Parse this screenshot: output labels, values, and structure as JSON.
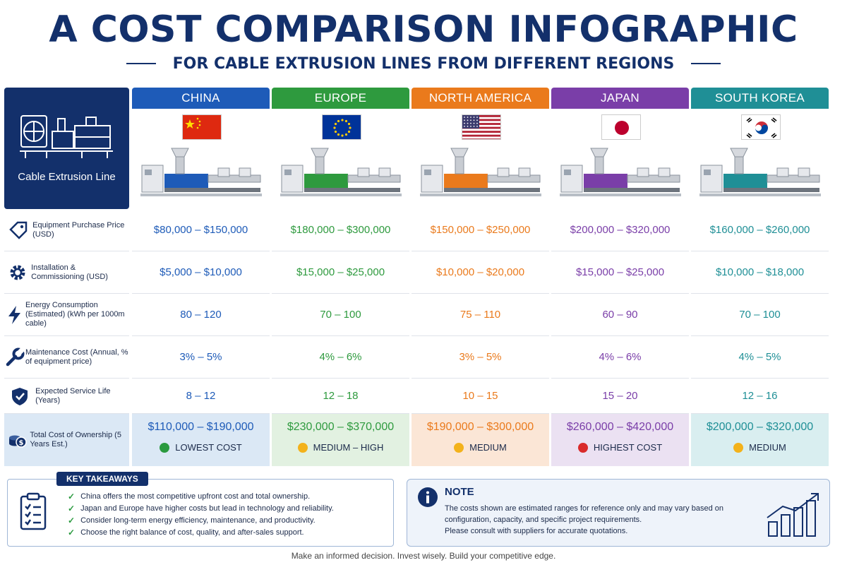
{
  "title": "A COST COMPARISON INFOGRAPHIC",
  "subtitle": "FOR CABLE EXTRUSION LINES FROM DIFFERENT REGIONS",
  "header_label": "Cable Extrusion Line",
  "row_labels": [
    {
      "text": "Equipment Purchase Price (USD)",
      "icon": "price-tag-icon"
    },
    {
      "text": "Installation & Commissioning (USD)",
      "icon": "gear-icon"
    },
    {
      "text": "Energy Consumption (Estimated) (kWh per 1000m cable)",
      "icon": "lightning-icon"
    },
    {
      "text": "Maintenance Cost (Annual, % of equipment price)",
      "icon": "wrench-icon"
    },
    {
      "text": "Expected Service Life (Years)",
      "icon": "shield-check-icon"
    },
    {
      "text": "Total Cost of Ownership (5 Years Est.)",
      "icon": "coins-icon"
    }
  ],
  "regions": [
    {
      "name": "CHINA",
      "color": "#1e5bb8",
      "tint": "#dbe8f5",
      "flag": "china",
      "values": [
        "$80,000 – $150,000",
        "$5,000 – $10,000",
        "80 – 120",
        "3% – 5%",
        "8 – 12"
      ],
      "tco": "$110,000 – $190,000",
      "rating": "LOWEST COST",
      "rating_color": "#2a9a3f"
    },
    {
      "name": "EUROPE",
      "color": "#2e9a3e",
      "tint": "#e2f1e1",
      "flag": "eu",
      "values": [
        "$180,000 – $300,000",
        "$15,000 – $25,000",
        "70 – 100",
        "4% – 6%",
        "12 – 18"
      ],
      "tco": "$230,000 – $370,000",
      "rating": "MEDIUM – HIGH",
      "rating_color": "#f3b21b"
    },
    {
      "name": "NORTH AMERICA",
      "color": "#ea7a1c",
      "tint": "#fbe6d6",
      "flag": "usa",
      "values": [
        "$150,000 – $250,000",
        "$10,000 – $20,000",
        "75 – 110",
        "3% – 5%",
        "10 – 15"
      ],
      "tco": "$190,000 – $300,000",
      "rating": "MEDIUM",
      "rating_color": "#f3b21b"
    },
    {
      "name": "JAPAN",
      "color": "#7a3ea8",
      "tint": "#ebe1f2",
      "flag": "japan",
      "values": [
        "$200,000 – $320,000",
        "$15,000 – $25,000",
        "60 – 90",
        "4% – 6%",
        "15 – 20"
      ],
      "tco": "$260,000 – $420,000",
      "rating": "HIGHEST COST",
      "rating_color": "#d92b2b"
    },
    {
      "name": "SOUTH KOREA",
      "color": "#1f8f96",
      "tint": "#d9eef0",
      "flag": "korea",
      "values": [
        "$160,000 – $260,000",
        "$10,000 – $18,000",
        "70 – 100",
        "4% – 5%",
        "12 – 16"
      ],
      "tco": "$200,000 – $320,000",
      "rating": "MEDIUM",
      "rating_color": "#f3b21b"
    }
  ],
  "key_takeaways": {
    "label": "KEY TAKEAWAYS",
    "items": [
      "China offers the most competitive upfront cost and total ownership.",
      "Japan and Europe have higher costs but lead in technology and reliability.",
      "Consider long-term energy efficiency, maintenance, and productivity.",
      "Choose the right balance of cost, quality, and after-sales support."
    ]
  },
  "note": {
    "title": "NOTE",
    "lines": [
      "The costs shown are estimated ranges for reference only and may vary based on",
      "configuration, capacity, and specific project requirements.",
      "Please consult with suppliers for accurate quotations."
    ]
  },
  "footer": "Make an informed decision. Invest wisely. Build your competitive edge."
}
